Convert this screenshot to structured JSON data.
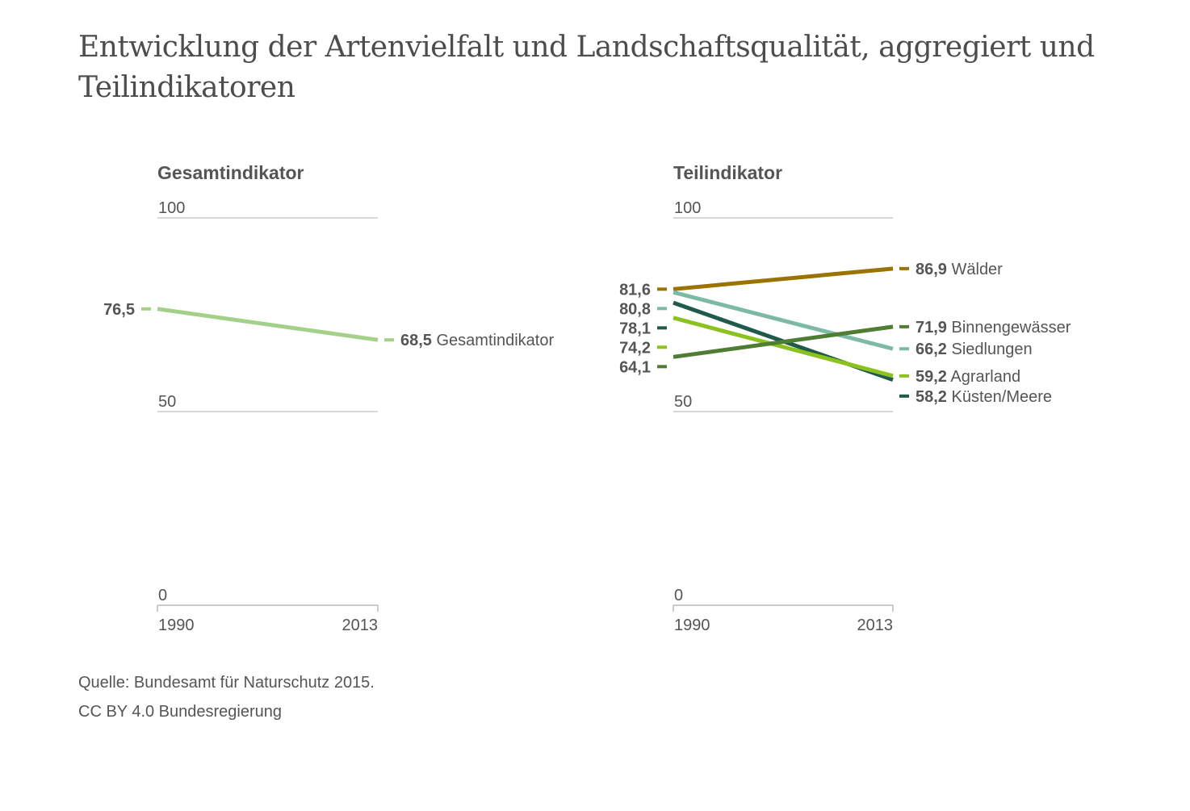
{
  "title": "Entwicklung der Artenvielfalt und Landschaftsqualität, aggregiert und Teilindikatoren",
  "source": "Quelle: Bundesamt für Naturschutz 2015.",
  "license": "CC BY 4.0 Bundesregierung",
  "chart_data": [
    {
      "type": "line",
      "title": "Gesamtindikator",
      "x": [
        "1990",
        "2013"
      ],
      "ylim": [
        0,
        100
      ],
      "yticks": [
        "0",
        "50",
        "100"
      ],
      "grid": true,
      "series": [
        {
          "name": "Gesamtindikator",
          "color": "#a4d18a",
          "values": [
            76.5,
            68.5
          ],
          "labels": [
            "76,5",
            "68,5"
          ]
        }
      ]
    },
    {
      "type": "line",
      "title": "Teilindikator",
      "x": [
        "1990",
        "2013"
      ],
      "ylim": [
        0,
        100
      ],
      "yticks": [
        "0",
        "50",
        "100"
      ],
      "grid": true,
      "series": [
        {
          "name": "Wälder",
          "color": "#9a7300",
          "values": [
            81.6,
            86.9
          ],
          "labels": [
            "81,6",
            "86,9"
          ]
        },
        {
          "name": "Siedlungen",
          "color": "#7dbaa4",
          "values": [
            80.8,
            66.2
          ],
          "labels": [
            "80,8",
            "66,2"
          ]
        },
        {
          "name": "Küsten/Meere",
          "color": "#1f5a4a",
          "values": [
            78.1,
            58.2
          ],
          "labels": [
            "78,1",
            "58,2"
          ]
        },
        {
          "name": "Agrarland",
          "color": "#8cc21f",
          "values": [
            74.2,
            59.2
          ],
          "labels": [
            "74,2",
            "59,2"
          ]
        },
        {
          "name": "Binnengewässer",
          "color": "#4f7d33",
          "values": [
            64.1,
            71.9
          ],
          "labels": [
            "64,1",
            "71,9"
          ]
        }
      ]
    }
  ]
}
